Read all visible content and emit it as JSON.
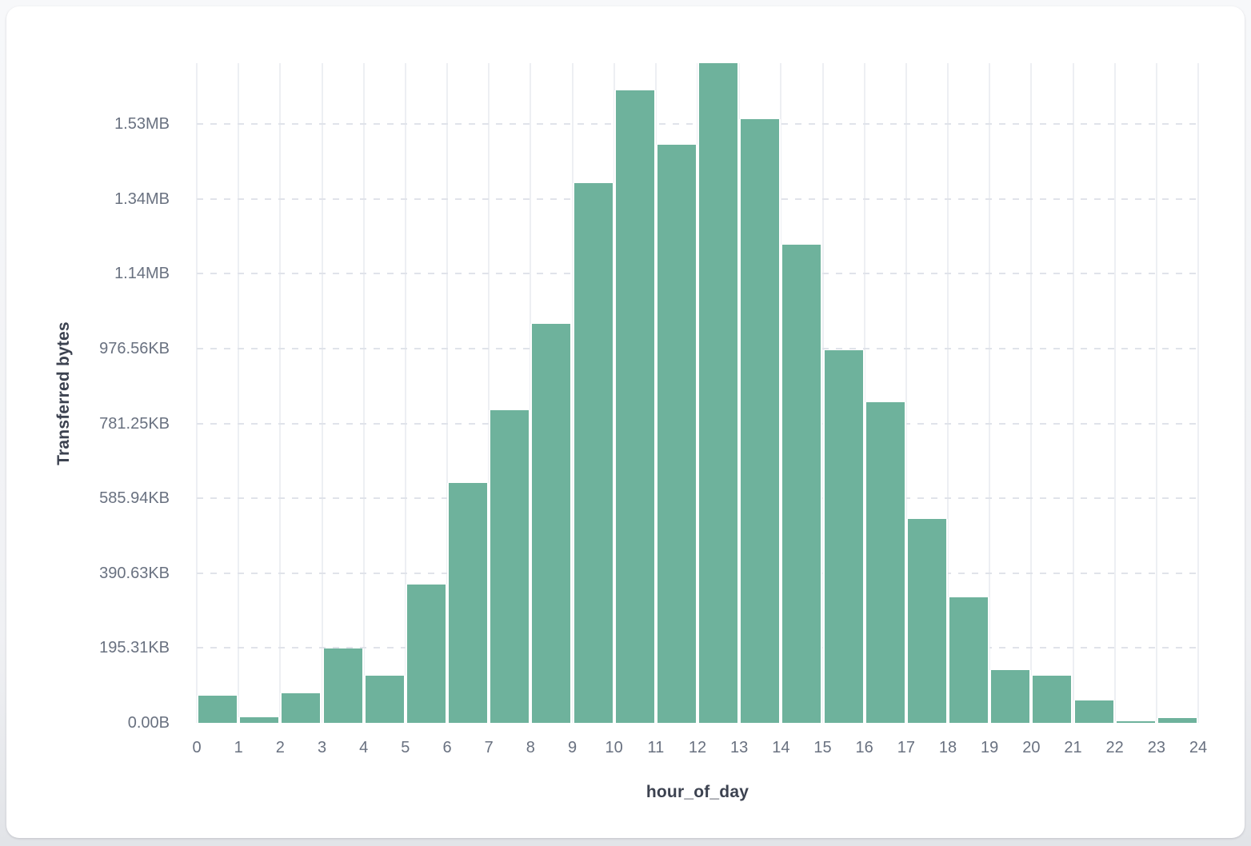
{
  "chart_data": {
    "type": "bar",
    "title": "",
    "xlabel": "hour_of_day",
    "ylabel": "Transferred bytes",
    "legend": "none",
    "grid": "on",
    "bar_color": "#6eb29c",
    "categories": [
      0,
      1,
      2,
      3,
      4,
      5,
      6,
      7,
      8,
      9,
      10,
      11,
      12,
      13,
      14,
      15,
      16,
      17,
      18,
      19,
      20,
      21,
      22,
      23
    ],
    "values_bytes": [
      72000,
      15000,
      79000,
      198000,
      126000,
      370000,
      642000,
      836000,
      1067000,
      1442000,
      1690000,
      1544000,
      1763000,
      1613000,
      1279000,
      995000,
      856000,
      545000,
      336000,
      141000,
      126000,
      60000,
      5000,
      13000
    ],
    "ylim_bytes": [
      0,
      1763000
    ],
    "y_ticks": [
      {
        "label": "0.00B",
        "bytes": 0
      },
      {
        "label": "195.31KB",
        "bytes": 200000
      },
      {
        "label": "390.63KB",
        "bytes": 400000
      },
      {
        "label": "585.94KB",
        "bytes": 600000
      },
      {
        "label": "781.25KB",
        "bytes": 800000
      },
      {
        "label": "976.56KB",
        "bytes": 1000000
      },
      {
        "label": "1.14MB",
        "bytes": 1200000
      },
      {
        "label": "1.34MB",
        "bytes": 1400000
      },
      {
        "label": "1.53MB",
        "bytes": 1600000
      }
    ],
    "x_ticks": [
      "0",
      "1",
      "2",
      "3",
      "4",
      "5",
      "6",
      "7",
      "8",
      "9",
      "10",
      "11",
      "12",
      "13",
      "14",
      "15",
      "16",
      "17",
      "18",
      "19",
      "20",
      "21",
      "22",
      "23",
      "24"
    ]
  }
}
